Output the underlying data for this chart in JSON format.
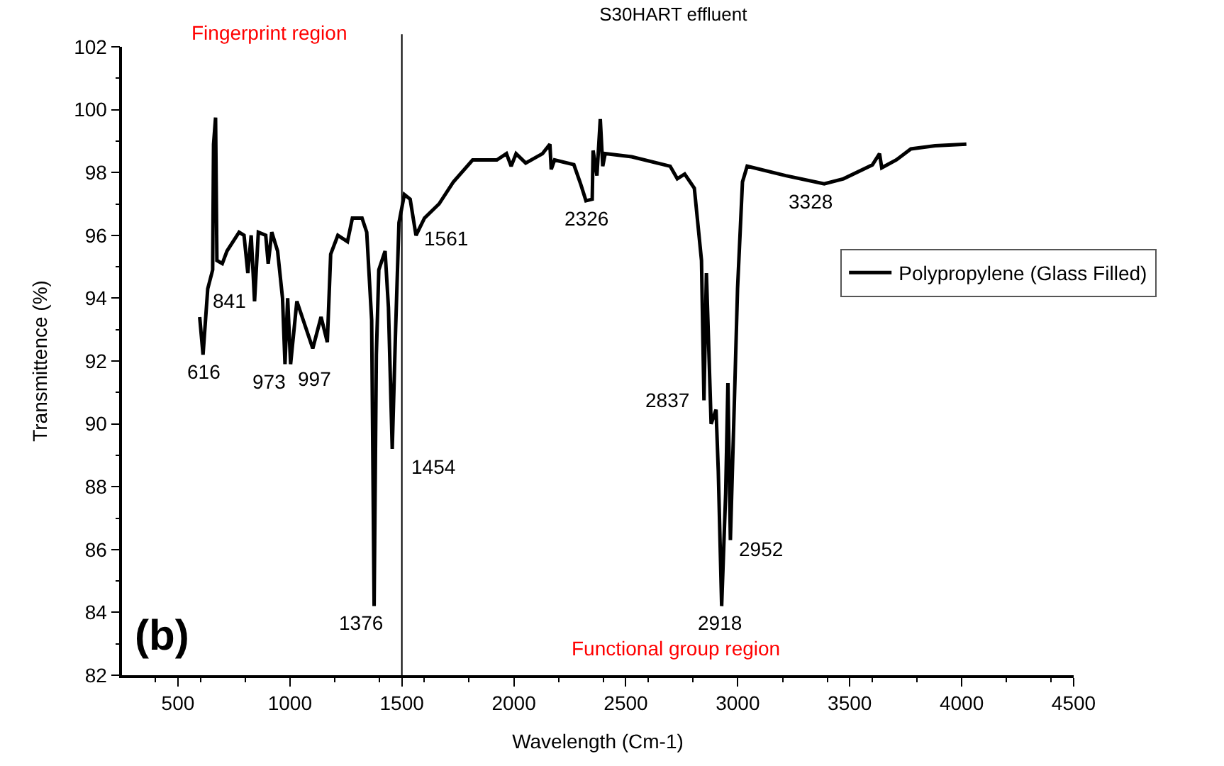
{
  "chart_data": {
    "type": "line",
    "title": "S30HART effluent",
    "xlabel": "Wavelength (Cm-1)",
    "ylabel": "Transmittence (%)",
    "xlim": [
      250,
      4500
    ],
    "xticks": [
      500,
      1000,
      1500,
      2000,
      2500,
      3000,
      3500,
      4000,
      4500
    ],
    "ylim": [
      82,
      102
    ],
    "yticks": [
      82,
      84,
      86,
      88,
      90,
      92,
      94,
      96,
      98,
      100,
      102
    ],
    "legend": "right",
    "marker": "none",
    "line_style": "solid",
    "series": [
      {
        "name": "Polypropylene (Glass Filled)",
        "color": "#000000",
        "x": [
          597,
          612,
          633,
          655,
          659,
          668,
          674,
          698,
          719,
          773,
          795,
          812,
          827,
          842,
          859,
          892,
          903,
          919,
          945,
          967,
          978,
          990,
          1003,
          1031,
          1102,
          1139,
          1167,
          1182,
          1214,
          1257,
          1279,
          1322,
          1343,
          1365,
          1376,
          1386,
          1397,
          1425,
          1440,
          1457,
          1472,
          1487,
          1511,
          1537,
          1563,
          1601,
          1666,
          1730,
          1816,
          1924,
          1967,
          1988,
          2010,
          2053,
          2128,
          2161,
          2167,
          2182,
          2268,
          2300,
          2322,
          2350,
          2354,
          2371,
          2386,
          2397,
          2408,
          2526,
          2698,
          2730,
          2763,
          2806,
          2838,
          2849,
          2860,
          2881,
          2903,
          2913,
          2928,
          2946,
          2956,
          2967,
          2982,
          2999,
          3021,
          3042,
          3214,
          3386,
          3472,
          3601,
          3633,
          3643,
          3708,
          3773,
          3881,
          4021
        ],
        "values": [
          93.4,
          92.2,
          94.3,
          94.9,
          98.9,
          99.75,
          95.2,
          95.1,
          95.5,
          96.1,
          96.0,
          94.8,
          96.0,
          93.9,
          96.1,
          96.0,
          95.1,
          96.1,
          95.5,
          94.0,
          91.9,
          94.0,
          91.9,
          93.9,
          92.4,
          93.4,
          92.6,
          95.4,
          96.0,
          95.8,
          96.55,
          96.55,
          96.1,
          93.3,
          84.2,
          92.2,
          94.9,
          95.5,
          93.7,
          89.2,
          93.0,
          96.4,
          97.3,
          97.15,
          96.0,
          96.55,
          97.0,
          97.7,
          98.4,
          98.4,
          98.6,
          98.2,
          98.6,
          98.3,
          98.6,
          98.9,
          98.1,
          98.4,
          98.25,
          97.6,
          97.1,
          97.15,
          98.7,
          97.9,
          99.7,
          98.2,
          98.6,
          98.5,
          98.2,
          97.8,
          97.95,
          97.5,
          95.2,
          90.75,
          94.8,
          90.0,
          90.45,
          88.5,
          84.2,
          87.8,
          91.3,
          86.3,
          90.0,
          94.3,
          97.7,
          98.2,
          97.9,
          97.64,
          97.8,
          98.24,
          98.6,
          98.15,
          98.4,
          98.75,
          98.85,
          98.9
        ]
      }
    ],
    "ref_lines": [
      {
        "axis": "x",
        "value": 1500,
        "color": "#000000"
      }
    ],
    "annotations": [
      {
        "text": "616",
        "x": 616,
        "y": 92.2
      },
      {
        "text": "841",
        "x": 841,
        "y": 93.9
      },
      {
        "text": "973",
        "x": 973,
        "y": 91.9
      },
      {
        "text": "997",
        "x": 997,
        "y": 91.9
      },
      {
        "text": "1376",
        "x": 1376,
        "y": 84.2
      },
      {
        "text": "1454",
        "x": 1454,
        "y": 89.2
      },
      {
        "text": "1561",
        "x": 1561,
        "y": 96.0
      },
      {
        "text": "2326",
        "x": 2326,
        "y": 97.1
      },
      {
        "text": "2837",
        "x": 2837,
        "y": 90.75
      },
      {
        "text": "2918",
        "x": 2918,
        "y": 84.2
      },
      {
        "text": "2952",
        "x": 2952,
        "y": 86.3
      },
      {
        "text": "3328",
        "x": 3328,
        "y": 97.64
      },
      "Fingerprint region",
      "Functional group region",
      "(b)"
    ]
  }
}
